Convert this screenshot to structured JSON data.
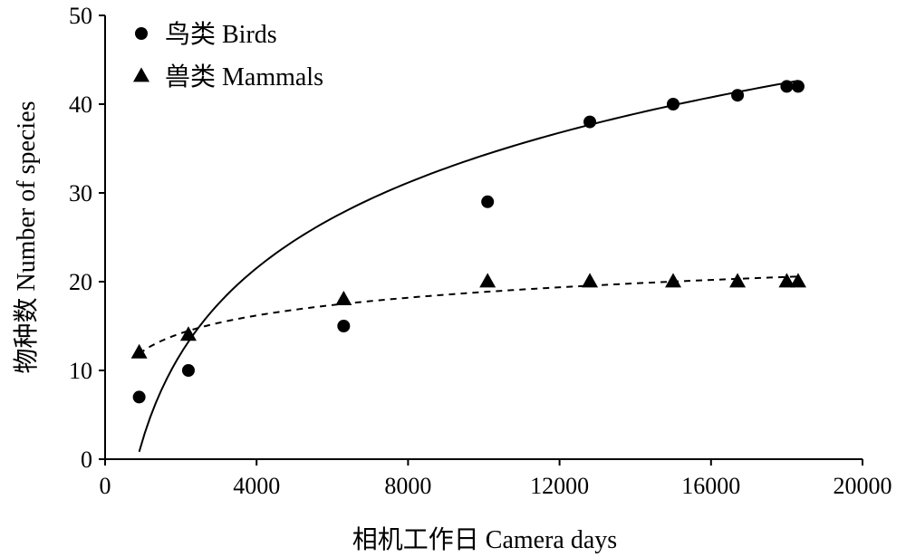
{
  "chart_data": {
    "type": "scatter",
    "xlabel": "相机工作日 Camera days",
    "ylabel": "物种数 Number of species",
    "xlim": [
      0,
      20000
    ],
    "ylim": [
      0,
      50
    ],
    "x_ticks": [
      "0",
      "4000",
      "8000",
      "12000",
      "16000",
      "20000"
    ],
    "y_ticks": [
      "0",
      "10",
      "20",
      "30",
      "40",
      "50"
    ],
    "grid": false,
    "legend_position": "top-left",
    "series": [
      {
        "name": "鸟类 Birds",
        "marker": "circle",
        "x": [
          900,
          2200,
          6300,
          10100,
          12800,
          15000,
          16700,
          18000,
          18300
        ],
        "y": [
          7,
          10,
          15,
          29,
          38,
          40,
          41,
          42,
          42
        ],
        "trend": {
          "style": "solid",
          "model": "logarithmic",
          "a": 13.88,
          "b": -93.59
        }
      },
      {
        "name": "兽类 Mammals",
        "marker": "triangle",
        "x": [
          900,
          2200,
          6300,
          10100,
          12800,
          15000,
          16700,
          18000,
          18300
        ],
        "y": [
          12,
          14,
          18,
          20,
          20,
          20,
          20,
          20,
          20
        ],
        "trend": {
          "style": "dashed",
          "model": "logarithmic",
          "a": 2.89,
          "b": -7.78
        }
      }
    ]
  }
}
